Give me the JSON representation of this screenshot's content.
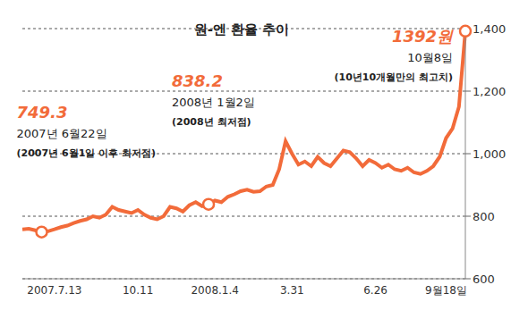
{
  "chart_data": {
    "type": "line",
    "title": "원-엔 환율 추이",
    "categories": [
      null,
      null,
      null,
      null,
      null,
      "2007.7.13",
      null,
      null,
      null,
      null,
      null,
      null,
      null,
      null,
      null,
      null,
      null,
      null,
      "10.11",
      null,
      null,
      null,
      null,
      null,
      null,
      null,
      null,
      null,
      null,
      null,
      "2008.1.4",
      null,
      null,
      null,
      null,
      null,
      null,
      null,
      null,
      null,
      null,
      null,
      "3.31",
      null,
      null,
      null,
      null,
      null,
      null,
      null,
      null,
      null,
      null,
      null,
      null,
      "6.26",
      null,
      null,
      null,
      null,
      null,
      null,
      null,
      null,
      null,
      null,
      "9월18일",
      null,
      null,
      null
    ],
    "values": [
      758,
      760,
      755,
      749.3,
      752,
      758,
      765,
      770,
      778,
      785,
      790,
      800,
      795,
      805,
      830,
      820,
      815,
      810,
      820,
      805,
      795,
      790,
      800,
      830,
      825,
      815,
      835,
      845,
      832,
      838.2,
      850,
      845,
      862,
      870,
      880,
      885,
      878,
      880,
      895,
      900,
      950,
      1040,
      1000,
      965,
      975,
      960,
      990,
      970,
      960,
      985,
      1010,
      1005,
      985,
      960,
      980,
      970,
      955,
      965,
      950,
      945,
      955,
      940,
      935,
      945,
      960,
      990,
      1050,
      1080,
      1150,
      1392
    ],
    "color": "#f26b3a",
    "ylim": [
      600,
      1400
    ],
    "yticks": [
      600,
      800,
      {
        "value": 1000,
        "label": "1,000"
      },
      {
        "value": 1200,
        "label": "1,200"
      },
      {
        "value": 1400,
        "label": "1,400"
      }
    ],
    "grid": true,
    "annotations": [
      {
        "value": 749.3,
        "label": "749.3",
        "date": "2007년 6월22일",
        "note": "(2007년 6월1일 이후 최저점)"
      },
      {
        "value": 838.2,
        "label": "838.2",
        "date": "2008년 1월2일",
        "note": "(2008년 최저점)"
      },
      {
        "value": 1392,
        "label": "1392원",
        "date": "10월8일",
        "note": "(10년10개월만의 최고치)"
      }
    ]
  }
}
